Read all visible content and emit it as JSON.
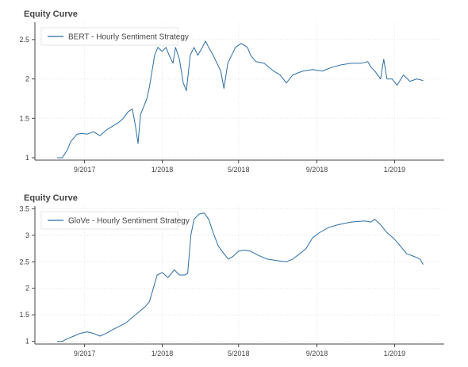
{
  "chart_data": [
    {
      "type": "line",
      "title": "Equity Curve",
      "xlabel": "",
      "ylabel": "",
      "x_ticks": [
        "9/2017",
        "1/2018",
        "5/2018",
        "9/2018",
        "1/2019"
      ],
      "y_ticks": [
        "1",
        "1.5",
        "2",
        "2.5"
      ],
      "ylim": [
        0.97,
        2.72
      ],
      "xlim": [
        "2017-06-15",
        "2019-03-20"
      ],
      "grid": true,
      "legend_position": "top-left",
      "series": [
        {
          "name": "BERT - Hourly Sentiment Strategy",
          "color": "#2b6da5",
          "points": [
            [
              "2017-07-20",
              1.0
            ],
            [
              "2017-07-28",
              1.0
            ],
            [
              "2017-08-01",
              1.05
            ],
            [
              "2017-08-05",
              1.1
            ],
            [
              "2017-08-10",
              1.2
            ],
            [
              "2017-08-15",
              1.25
            ],
            [
              "2017-08-20",
              1.3
            ],
            [
              "2017-08-28",
              1.31
            ],
            [
              "2017-09-05",
              1.3
            ],
            [
              "2017-09-15",
              1.33
            ],
            [
              "2017-09-25",
              1.28
            ],
            [
              "2017-10-05",
              1.35
            ],
            [
              "2017-10-15",
              1.4
            ],
            [
              "2017-10-25",
              1.45
            ],
            [
              "2017-11-01",
              1.5
            ],
            [
              "2017-11-08",
              1.58
            ],
            [
              "2017-11-15",
              1.62
            ],
            [
              "2017-11-20",
              1.4
            ],
            [
              "2017-11-24",
              1.18
            ],
            [
              "2017-11-28",
              1.55
            ],
            [
              "2017-12-03",
              1.65
            ],
            [
              "2017-12-08",
              1.75
            ],
            [
              "2017-12-12",
              1.9
            ],
            [
              "2017-12-16",
              2.1
            ],
            [
              "2017-12-20",
              2.3
            ],
            [
              "2017-12-25",
              2.4
            ],
            [
              "2018-01-01",
              2.35
            ],
            [
              "2018-01-07",
              2.4
            ],
            [
              "2018-01-12",
              2.3
            ],
            [
              "2018-01-18",
              2.2
            ],
            [
              "2018-01-22",
              2.4
            ],
            [
              "2018-01-28",
              2.25
            ],
            [
              "2018-02-03",
              1.95
            ],
            [
              "2018-02-08",
              1.85
            ],
            [
              "2018-02-14",
              2.3
            ],
            [
              "2018-02-20",
              2.4
            ],
            [
              "2018-02-26",
              2.3
            ],
            [
              "2018-03-05",
              2.4
            ],
            [
              "2018-03-10",
              2.48
            ],
            [
              "2018-03-15",
              2.4
            ],
            [
              "2018-03-22",
              2.3
            ],
            [
              "2018-03-28",
              2.2
            ],
            [
              "2018-04-03",
              2.1
            ],
            [
              "2018-04-08",
              1.88
            ],
            [
              "2018-04-14",
              2.2
            ],
            [
              "2018-04-20",
              2.3
            ],
            [
              "2018-04-26",
              2.4
            ],
            [
              "2018-05-05",
              2.45
            ],
            [
              "2018-05-15",
              2.4
            ],
            [
              "2018-05-20",
              2.3
            ],
            [
              "2018-05-28",
              2.22
            ],
            [
              "2018-06-10",
              2.2
            ],
            [
              "2018-06-25",
              2.1
            ],
            [
              "2018-07-05",
              2.05
            ],
            [
              "2018-07-15",
              1.95
            ],
            [
              "2018-07-25",
              2.05
            ],
            [
              "2018-08-10",
              2.1
            ],
            [
              "2018-08-25",
              2.12
            ],
            [
              "2018-09-10",
              2.1
            ],
            [
              "2018-09-25",
              2.15
            ],
            [
              "2018-10-10",
              2.18
            ],
            [
              "2018-10-25",
              2.2
            ],
            [
              "2018-11-10",
              2.2
            ],
            [
              "2018-11-20",
              2.22
            ],
            [
              "2018-11-25",
              2.15
            ],
            [
              "2018-12-01",
              2.1
            ],
            [
              "2018-12-10",
              2.0
            ],
            [
              "2018-12-15",
              2.25
            ],
            [
              "2018-12-20",
              2.0
            ],
            [
              "2018-12-28",
              2.0
            ],
            [
              "2019-01-05",
              1.92
            ],
            [
              "2019-01-15",
              2.05
            ],
            [
              "2019-01-25",
              1.97
            ],
            [
              "2019-02-05",
              2.0
            ],
            [
              "2019-02-15",
              1.98
            ]
          ]
        }
      ]
    },
    {
      "type": "line",
      "title": "Equity Curve",
      "xlabel": "",
      "ylabel": "",
      "x_ticks": [
        "9/2017",
        "1/2018",
        "5/2018",
        "9/2018",
        "1/2019"
      ],
      "y_ticks": [
        "1",
        "1.5",
        "2",
        "2.5",
        "3",
        "3.5"
      ],
      "ylim": [
        0.95,
        3.55
      ],
      "xlim": [
        "2017-06-15",
        "2019-03-20"
      ],
      "grid": true,
      "legend_position": "top-left",
      "series": [
        {
          "name": "GloVe - Hourly Sentiment Strategy",
          "color": "#2b6da5",
          "points": [
            [
              "2017-07-20",
              1.0
            ],
            [
              "2017-07-28",
              1.0
            ],
            [
              "2017-08-05",
              1.05
            ],
            [
              "2017-08-15",
              1.1
            ],
            [
              "2017-08-25",
              1.15
            ],
            [
              "2017-09-05",
              1.18
            ],
            [
              "2017-09-15",
              1.15
            ],
            [
              "2017-09-25",
              1.1
            ],
            [
              "2017-10-05",
              1.15
            ],
            [
              "2017-10-15",
              1.22
            ],
            [
              "2017-10-25",
              1.28
            ],
            [
              "2017-11-05",
              1.35
            ],
            [
              "2017-11-15",
              1.45
            ],
            [
              "2017-11-25",
              1.55
            ],
            [
              "2017-12-05",
              1.65
            ],
            [
              "2017-12-12",
              1.75
            ],
            [
              "2017-12-18",
              2.0
            ],
            [
              "2017-12-24",
              2.25
            ],
            [
              "2018-01-01",
              2.3
            ],
            [
              "2018-01-10",
              2.2
            ],
            [
              "2018-01-20",
              2.35
            ],
            [
              "2018-01-28",
              2.25
            ],
            [
              "2018-02-05",
              2.25
            ],
            [
              "2018-02-10",
              2.28
            ],
            [
              "2018-02-15",
              3.0
            ],
            [
              "2018-02-20",
              3.3
            ],
            [
              "2018-02-28",
              3.4
            ],
            [
              "2018-03-08",
              3.42
            ],
            [
              "2018-03-15",
              3.3
            ],
            [
              "2018-03-22",
              3.05
            ],
            [
              "2018-03-30",
              2.8
            ],
            [
              "2018-04-08",
              2.65
            ],
            [
              "2018-04-15",
              2.55
            ],
            [
              "2018-04-22",
              2.6
            ],
            [
              "2018-05-01",
              2.7
            ],
            [
              "2018-05-10",
              2.72
            ],
            [
              "2018-05-20",
              2.7
            ],
            [
              "2018-06-01",
              2.62
            ],
            [
              "2018-06-15",
              2.55
            ],
            [
              "2018-07-01",
              2.52
            ],
            [
              "2018-07-15",
              2.5
            ],
            [
              "2018-07-25",
              2.55
            ],
            [
              "2018-08-05",
              2.65
            ],
            [
              "2018-08-15",
              2.75
            ],
            [
              "2018-08-25",
              2.95
            ],
            [
              "2018-09-05",
              3.05
            ],
            [
              "2018-09-20",
              3.15
            ],
            [
              "2018-10-05",
              3.2
            ],
            [
              "2018-10-25",
              3.25
            ],
            [
              "2018-11-15",
              3.27
            ],
            [
              "2018-11-25",
              3.25
            ],
            [
              "2018-12-01",
              3.3
            ],
            [
              "2018-12-10",
              3.2
            ],
            [
              "2018-12-20",
              3.05
            ],
            [
              "2018-12-30",
              2.95
            ],
            [
              "2019-01-10",
              2.8
            ],
            [
              "2019-01-20",
              2.65
            ],
            [
              "2019-02-01",
              2.6
            ],
            [
              "2019-02-10",
              2.55
            ],
            [
              "2019-02-15",
              2.45
            ]
          ]
        }
      ]
    }
  ]
}
